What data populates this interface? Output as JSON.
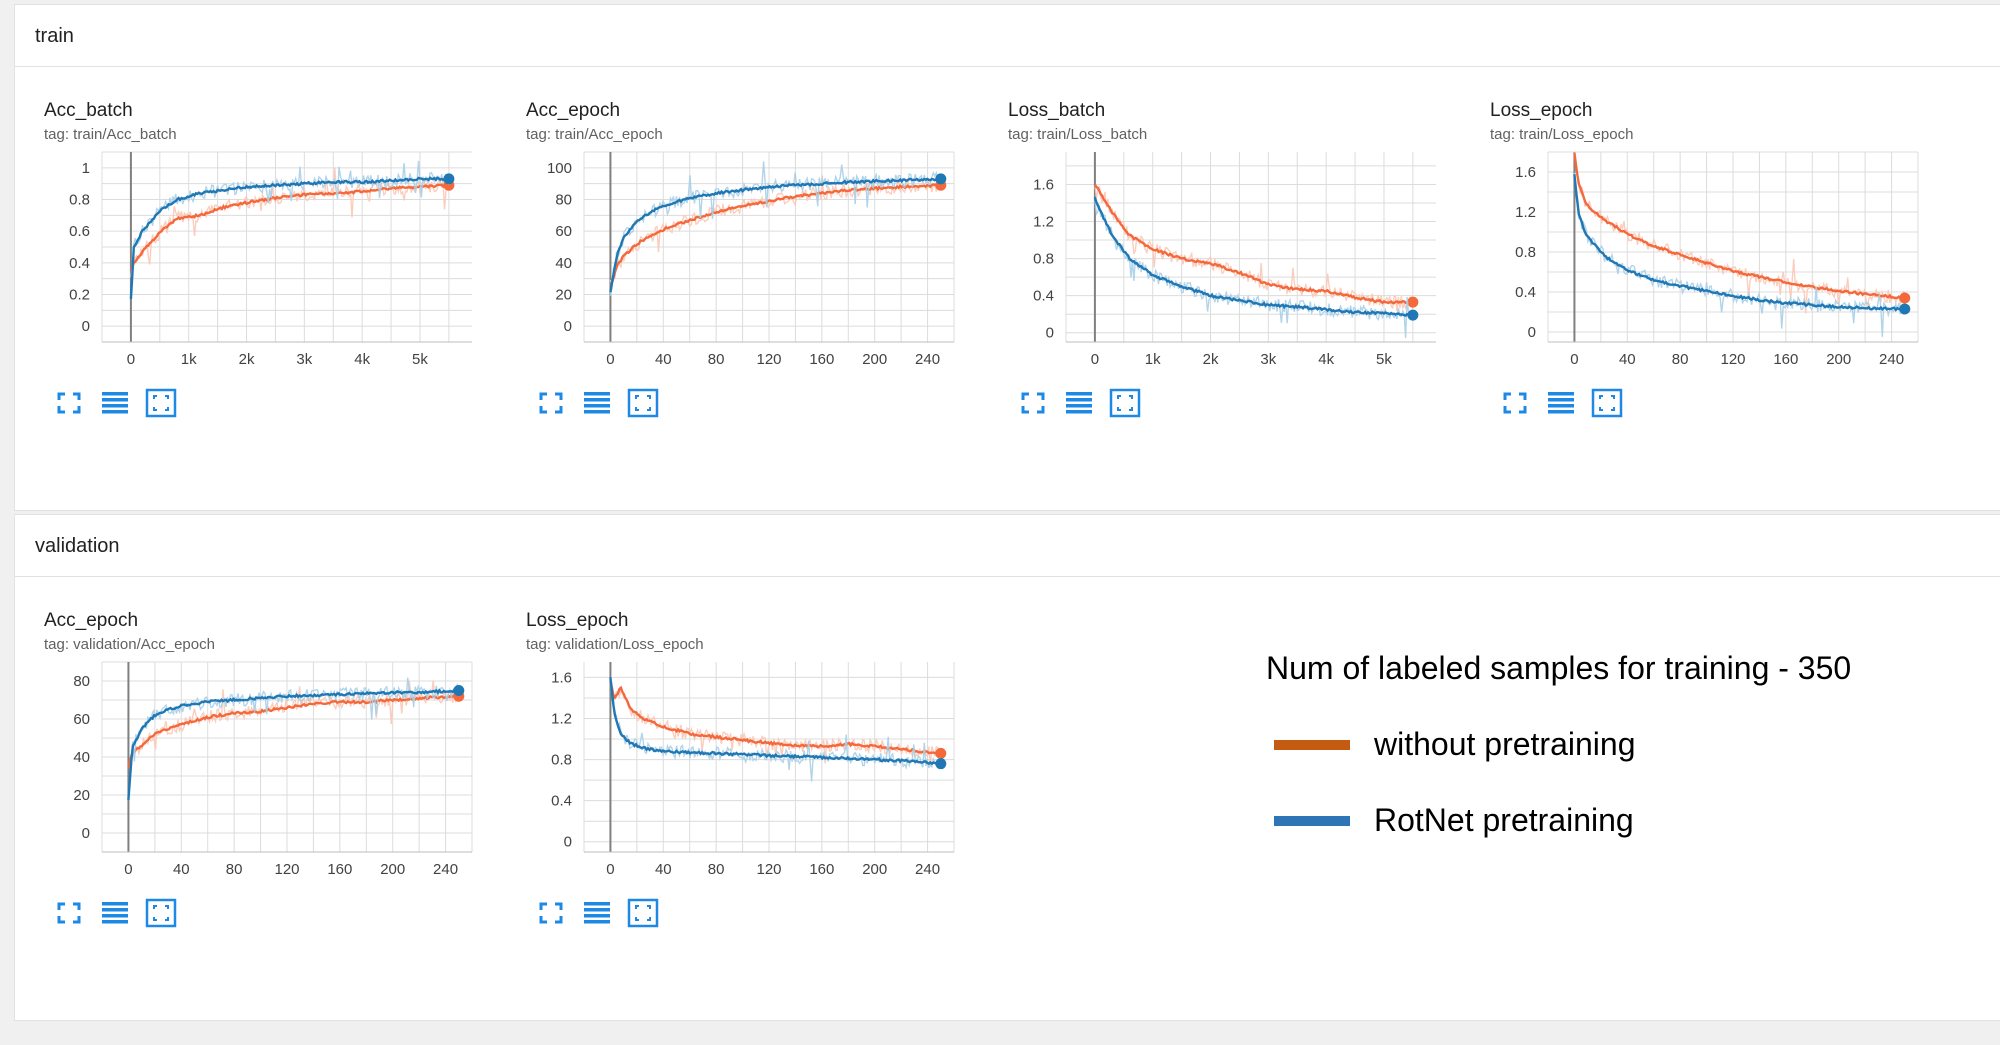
{
  "sections": [
    {
      "key": "train",
      "label": "train"
    },
    {
      "key": "validation",
      "label": "validation"
    }
  ],
  "colors": {
    "without_pretraining": "#f4693c",
    "rotnet_pretraining": "#1f77b4",
    "icon": "#1e88e5",
    "legend_without": "#c55a11",
    "legend_rotnet": "#2e75b6"
  },
  "legend": {
    "title": "Num of labeled samples for training - 350",
    "items": [
      {
        "label": "without pretraining",
        "color": "#c55a11"
      },
      {
        "label": "RotNet pretraining",
        "color": "#2e75b6"
      }
    ]
  },
  "card_icons": [
    "expand-icon",
    "data-list-icon",
    "fit-domain-icon"
  ],
  "chart_data": [
    {
      "id": "train-acc-batch",
      "section": "train",
      "type": "line",
      "title": "Acc_batch",
      "tag": "tag: train/Acc_batch",
      "xlim": [
        -500,
        5900
      ],
      "ylim": [
        -0.1,
        1.1
      ],
      "xticks": [
        0,
        1000,
        2000,
        3000,
        4000,
        5000
      ],
      "xtick_labels": [
        "0",
        "1k",
        "2k",
        "3k",
        "4k",
        "5k"
      ],
      "yticks": [
        0,
        0.2,
        0.4,
        0.6,
        0.8,
        1
      ],
      "ytick_labels": [
        "0",
        "0.2",
        "0.4",
        "0.6",
        "0.8",
        "1"
      ],
      "grid": true,
      "series": [
        {
          "key": "without_pretraining",
          "x": [
            0,
            50,
            200,
            500,
            800,
            1200,
            1600,
            2000,
            2500,
            3000,
            3500,
            4000,
            4500,
            5000,
            5500
          ],
          "y": [
            0.35,
            0.4,
            0.47,
            0.59,
            0.68,
            0.7,
            0.75,
            0.78,
            0.81,
            0.83,
            0.84,
            0.85,
            0.87,
            0.88,
            0.89
          ]
        },
        {
          "key": "rotnet_pretraining",
          "x": [
            0,
            50,
            200,
            500,
            800,
            1200,
            1600,
            2000,
            2500,
            3000,
            3500,
            4000,
            4500,
            5000,
            5500
          ],
          "y": [
            0.17,
            0.5,
            0.6,
            0.73,
            0.8,
            0.84,
            0.86,
            0.88,
            0.89,
            0.9,
            0.91,
            0.91,
            0.92,
            0.93,
            0.93
          ]
        }
      ]
    },
    {
      "id": "train-acc-epoch",
      "section": "train",
      "type": "line",
      "title": "Acc_epoch",
      "tag": "tag: train/Acc_epoch",
      "xlim": [
        -20,
        260
      ],
      "ylim": [
        -10,
        110
      ],
      "xticks": [
        0,
        40,
        80,
        120,
        160,
        200,
        240
      ],
      "xtick_labels": [
        "0",
        "40",
        "80",
        "120",
        "160",
        "200",
        "240"
      ],
      "yticks": [
        0,
        20,
        40,
        60,
        80,
        100
      ],
      "ytick_labels": [
        "0",
        "20",
        "40",
        "60",
        "80",
        "100"
      ],
      "grid": true,
      "series": [
        {
          "key": "without_pretraining",
          "x": [
            0,
            5,
            10,
            20,
            30,
            40,
            60,
            80,
            100,
            120,
            140,
            160,
            180,
            200,
            220,
            250
          ],
          "y": [
            25,
            38,
            44,
            52,
            57,
            61,
            67,
            72,
            76,
            79,
            82,
            84,
            86,
            87,
            88,
            89
          ]
        },
        {
          "key": "rotnet_pretraining",
          "x": [
            0,
            5,
            10,
            20,
            30,
            40,
            60,
            80,
            100,
            120,
            140,
            160,
            180,
            200,
            220,
            250
          ],
          "y": [
            21,
            45,
            56,
            66,
            72,
            76,
            81,
            84,
            86,
            88,
            89,
            90,
            91,
            91.5,
            92,
            93
          ]
        }
      ]
    },
    {
      "id": "train-loss-batch",
      "section": "train",
      "type": "line",
      "title": "Loss_batch",
      "tag": "tag: train/Loss_batch",
      "xlim": [
        -500,
        5900
      ],
      "ylim": [
        -0.1,
        1.95
      ],
      "xticks": [
        0,
        1000,
        2000,
        3000,
        4000,
        5000
      ],
      "xtick_labels": [
        "0",
        "1k",
        "2k",
        "3k",
        "4k",
        "5k"
      ],
      "yticks": [
        0,
        0.4,
        0.8,
        1.2,
        1.6
      ],
      "ytick_labels": [
        "0",
        "0.4",
        "0.8",
        "1.2",
        "1.6"
      ],
      "grid": true,
      "series": [
        {
          "key": "without_pretraining",
          "x": [
            0,
            100,
            300,
            600,
            1000,
            1500,
            2000,
            2500,
            3000,
            3500,
            4000,
            4500,
            5000,
            5500
          ],
          "y": [
            1.6,
            1.5,
            1.3,
            1.05,
            0.9,
            0.8,
            0.75,
            0.65,
            0.52,
            0.47,
            0.45,
            0.38,
            0.33,
            0.33
          ]
        },
        {
          "key": "rotnet_pretraining",
          "x": [
            0,
            100,
            300,
            600,
            1000,
            1500,
            2000,
            2500,
            3000,
            3500,
            4000,
            4500,
            5000,
            5500
          ],
          "y": [
            1.45,
            1.3,
            1.05,
            0.8,
            0.62,
            0.5,
            0.4,
            0.35,
            0.3,
            0.28,
            0.25,
            0.22,
            0.21,
            0.19
          ]
        }
      ]
    },
    {
      "id": "train-loss-epoch",
      "section": "train",
      "type": "line",
      "title": "Loss_epoch",
      "tag": "tag: train/Loss_epoch",
      "xlim": [
        -20,
        260
      ],
      "ylim": [
        -0.1,
        1.8
      ],
      "xticks": [
        0,
        40,
        80,
        120,
        160,
        200,
        240
      ],
      "xtick_labels": [
        "0",
        "40",
        "80",
        "120",
        "160",
        "200",
        "240"
      ],
      "yticks": [
        0,
        0.4,
        0.8,
        1.2,
        1.6
      ],
      "ytick_labels": [
        "0",
        "0.4",
        "0.8",
        "1.2",
        "1.6"
      ],
      "grid": true,
      "series": [
        {
          "key": "without_pretraining",
          "x": [
            0,
            3,
            8,
            15,
            25,
            40,
            60,
            80,
            100,
            120,
            140,
            160,
            180,
            200,
            220,
            250
          ],
          "y": [
            1.8,
            1.5,
            1.3,
            1.2,
            1.1,
            0.98,
            0.86,
            0.77,
            0.69,
            0.61,
            0.55,
            0.5,
            0.45,
            0.41,
            0.38,
            0.34
          ]
        },
        {
          "key": "rotnet_pretraining",
          "x": [
            0,
            3,
            8,
            15,
            25,
            40,
            60,
            80,
            100,
            120,
            140,
            160,
            180,
            200,
            220,
            250
          ],
          "y": [
            1.58,
            1.2,
            1.0,
            0.87,
            0.74,
            0.62,
            0.52,
            0.46,
            0.41,
            0.36,
            0.32,
            0.29,
            0.27,
            0.25,
            0.24,
            0.23
          ]
        }
      ]
    },
    {
      "id": "validation-acc-epoch",
      "section": "validation",
      "type": "line",
      "title": "Acc_epoch",
      "tag": "tag: validation/Acc_epoch",
      "xlim": [
        -20,
        260
      ],
      "ylim": [
        -10,
        90
      ],
      "xticks": [
        0,
        40,
        80,
        120,
        160,
        200,
        240
      ],
      "xtick_labels": [
        "0",
        "40",
        "80",
        "120",
        "160",
        "200",
        "240"
      ],
      "yticks": [
        0,
        20,
        40,
        60,
        80
      ],
      "ytick_labels": [
        "0",
        "20",
        "40",
        "60",
        "80"
      ],
      "grid": true,
      "series": [
        {
          "key": "without_pretraining",
          "x": [
            0,
            3,
            10,
            20,
            30,
            40,
            60,
            80,
            100,
            120,
            140,
            160,
            180,
            200,
            220,
            250
          ],
          "y": [
            35,
            42,
            46,
            52,
            55,
            57,
            61,
            63,
            64,
            66,
            68,
            69,
            69,
            70,
            71,
            72
          ]
        },
        {
          "key": "rotnet_pretraining",
          "x": [
            0,
            3,
            10,
            20,
            30,
            40,
            60,
            80,
            100,
            120,
            140,
            160,
            180,
            200,
            220,
            250
          ],
          "y": [
            18,
            45,
            55,
            62,
            65,
            67,
            69,
            70,
            71,
            72,
            72.5,
            73,
            73.5,
            74,
            74,
            75
          ]
        }
      ]
    },
    {
      "id": "validation-loss-epoch",
      "section": "validation",
      "type": "line",
      "title": "Loss_epoch",
      "tag": "tag: validation/Loss_epoch",
      "xlim": [
        -20,
        260
      ],
      "ylim": [
        -0.1,
        1.75
      ],
      "xticks": [
        0,
        40,
        80,
        120,
        160,
        200,
        240
      ],
      "xtick_labels": [
        "0",
        "40",
        "80",
        "120",
        "160",
        "200",
        "240"
      ],
      "yticks": [
        0,
        0.4,
        0.8,
        1.2,
        1.6
      ],
      "ytick_labels": [
        "0",
        "0.4",
        "0.8",
        "1.2",
        "1.6"
      ],
      "grid": true,
      "series": [
        {
          "key": "without_pretraining",
          "x": [
            0,
            3,
            8,
            15,
            25,
            40,
            60,
            80,
            100,
            120,
            140,
            160,
            180,
            200,
            220,
            250
          ],
          "y": [
            1.55,
            1.4,
            1.5,
            1.3,
            1.2,
            1.12,
            1.05,
            1.02,
            0.99,
            0.96,
            0.94,
            0.93,
            0.95,
            0.93,
            0.9,
            0.86
          ]
        },
        {
          "key": "rotnet_pretraining",
          "x": [
            0,
            3,
            8,
            15,
            25,
            40,
            60,
            80,
            100,
            120,
            140,
            160,
            180,
            200,
            220,
            250
          ],
          "y": [
            1.6,
            1.25,
            1.05,
            0.96,
            0.91,
            0.88,
            0.87,
            0.86,
            0.85,
            0.84,
            0.83,
            0.82,
            0.81,
            0.8,
            0.79,
            0.76
          ]
        }
      ]
    }
  ]
}
